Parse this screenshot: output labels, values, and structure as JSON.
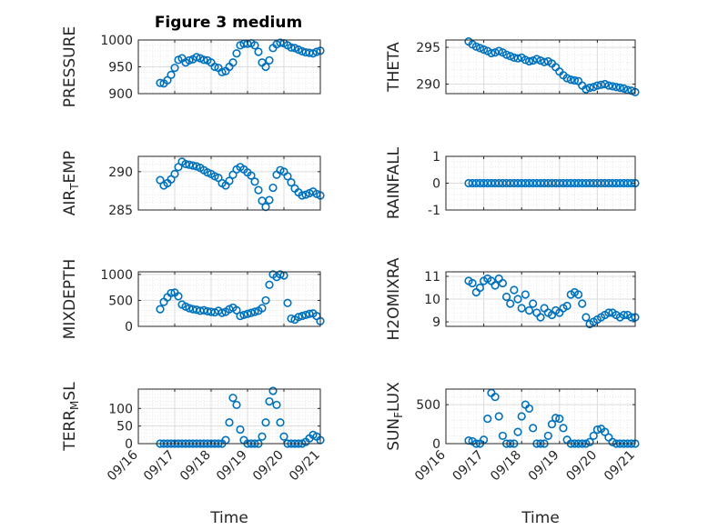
{
  "figure": {
    "title": "Figure 3 medium",
    "marker_color": "#0072BD"
  },
  "chart_data": [
    {
      "type": "scatter",
      "id": "pressure",
      "ylabel": "PRESSURE",
      "ylabel_parts": [
        [
          "PRESSURE",
          ""
        ]
      ],
      "ylim": [
        900,
        1000
      ],
      "yticks": [
        900,
        950,
        1000
      ],
      "ytick_labels": [
        "900",
        "950",
        "1000"
      ],
      "xlim": [
        0,
        5
      ],
      "xticks": [
        0,
        1,
        2,
        3,
        4,
        5
      ],
      "series": [
        {
          "name": "PRESSURE",
          "x": [
            0.6,
            0.7,
            0.8,
            0.9,
            1.0,
            1.1,
            1.2,
            1.3,
            1.4,
            1.5,
            1.6,
            1.7,
            1.8,
            1.9,
            2.0,
            2.1,
            2.2,
            2.3,
            2.4,
            2.5,
            2.6,
            2.7,
            2.8,
            2.9,
            3.0,
            3.1,
            3.2,
            3.3,
            3.4,
            3.5,
            3.6,
            3.7,
            3.8,
            3.9,
            4.0,
            4.1,
            4.2,
            4.3,
            4.4,
            4.5,
            4.6,
            4.7,
            4.8,
            4.9,
            5.0
          ],
          "y": [
            920,
            919,
            925,
            935,
            948,
            963,
            966,
            958,
            962,
            964,
            968,
            966,
            963,
            962,
            958,
            950,
            948,
            940,
            942,
            950,
            958,
            975,
            990,
            993,
            993,
            994,
            990,
            978,
            958,
            950,
            962,
            985,
            992,
            995,
            994,
            990,
            986,
            985,
            982,
            979,
            977,
            976,
            975,
            978,
            980
          ]
        }
      ]
    },
    {
      "type": "scatter",
      "id": "theta",
      "ylabel": "THETA",
      "ylabel_parts": [
        [
          "THETA",
          ""
        ]
      ],
      "ylim": [
        288.7,
        296
      ],
      "yticks": [
        290,
        295
      ],
      "ytick_labels": [
        "290",
        "295"
      ],
      "xlim": [
        0,
        5
      ],
      "xticks": [
        0,
        1,
        2,
        3,
        4,
        5
      ],
      "series": [
        {
          "name": "THETA",
          "x": [
            0.6,
            0.7,
            0.8,
            0.9,
            1.0,
            1.1,
            1.2,
            1.3,
            1.4,
            1.5,
            1.6,
            1.7,
            1.8,
            1.9,
            2.0,
            2.1,
            2.2,
            2.3,
            2.4,
            2.5,
            2.6,
            2.7,
            2.8,
            2.9,
            3.0,
            3.1,
            3.2,
            3.3,
            3.4,
            3.5,
            3.6,
            3.7,
            3.8,
            3.9,
            4.0,
            4.1,
            4.2,
            4.3,
            4.4,
            4.5,
            4.6,
            4.7,
            4.8,
            4.9,
            5.0
          ],
          "y": [
            295.8,
            295.4,
            295.1,
            294.9,
            294.7,
            294.5,
            294.2,
            294.3,
            294.5,
            294.3,
            294.0,
            293.8,
            293.6,
            293.5,
            293.6,
            293.3,
            293.1,
            293.2,
            293.4,
            293.2,
            293.0,
            293.1,
            292.8,
            292.3,
            291.7,
            291.2,
            290.8,
            290.6,
            290.5,
            290.4,
            289.8,
            289.3,
            289.5,
            289.6,
            289.8,
            289.9,
            290.0,
            289.8,
            289.7,
            289.6,
            289.5,
            289.4,
            289.2,
            289.1,
            288.9
          ]
        }
      ]
    },
    {
      "type": "scatter",
      "id": "airtemp",
      "ylabel": "AIRTEMP",
      "ylabel_parts": [
        [
          "AIR",
          ""
        ],
        [
          "T",
          "sub"
        ],
        [
          "EMP",
          ""
        ]
      ],
      "ylim": [
        285,
        292
      ],
      "yticks": [
        285,
        290
      ],
      "ytick_labels": [
        "285",
        "290"
      ],
      "xlim": [
        0,
        5
      ],
      "xticks": [
        0,
        1,
        2,
        3,
        4,
        5
      ],
      "series": [
        {
          "name": "AIRTEMP",
          "x": [
            0.6,
            0.7,
            0.8,
            0.9,
            1.0,
            1.1,
            1.2,
            1.3,
            1.4,
            1.5,
            1.6,
            1.7,
            1.8,
            1.9,
            2.0,
            2.1,
            2.2,
            2.3,
            2.4,
            2.5,
            2.6,
            2.7,
            2.8,
            2.9,
            3.0,
            3.1,
            3.2,
            3.3,
            3.4,
            3.5,
            3.6,
            3.7,
            3.8,
            3.9,
            4.0,
            4.1,
            4.2,
            4.3,
            4.4,
            4.5,
            4.6,
            4.7,
            4.8,
            4.9,
            5.0
          ],
          "y": [
            288.9,
            288.2,
            288.5,
            289.0,
            289.7,
            290.6,
            291.3,
            291.0,
            290.9,
            290.8,
            290.7,
            290.5,
            290.2,
            289.9,
            289.7,
            289.4,
            289.2,
            288.5,
            288.2,
            288.8,
            289.6,
            290.3,
            290.6,
            290.3,
            289.9,
            289.5,
            288.7,
            287.6,
            286.2,
            285.4,
            286.3,
            287.9,
            289.6,
            290.2,
            290.0,
            289.4,
            288.6,
            287.8,
            287.3,
            286.9,
            287.0,
            287.2,
            287.4,
            287.1,
            286.9
          ]
        }
      ]
    },
    {
      "type": "scatter",
      "id": "rainfall",
      "ylabel": "RAINFALL",
      "ylabel_parts": [
        [
          "RAINFALL",
          ""
        ]
      ],
      "ylim": [
        -1,
        1
      ],
      "yticks": [
        -1,
        0,
        1
      ],
      "ytick_labels": [
        "-1",
        "0",
        "1"
      ],
      "xlim": [
        0,
        5
      ],
      "xticks": [
        0,
        1,
        2,
        3,
        4,
        5
      ],
      "series": [
        {
          "name": "RAINFALL",
          "x": [
            0.6,
            0.7,
            0.8,
            0.9,
            1.0,
            1.1,
            1.2,
            1.3,
            1.4,
            1.5,
            1.6,
            1.7,
            1.8,
            1.9,
            2.0,
            2.1,
            2.2,
            2.3,
            2.4,
            2.5,
            2.6,
            2.7,
            2.8,
            2.9,
            3.0,
            3.1,
            3.2,
            3.3,
            3.4,
            3.5,
            3.6,
            3.7,
            3.8,
            3.9,
            4.0,
            4.1,
            4.2,
            4.3,
            4.4,
            4.5,
            4.6,
            4.7,
            4.8,
            4.9,
            5.0
          ],
          "y": [
            0,
            0,
            0,
            0,
            0,
            0,
            0,
            0,
            0,
            0,
            0,
            0,
            0,
            0,
            0,
            0,
            0,
            0,
            0,
            0,
            0,
            0,
            0,
            0,
            0,
            0,
            0,
            0,
            0,
            0,
            0,
            0,
            0,
            0,
            0,
            0,
            0,
            0,
            0,
            0,
            0,
            0,
            0,
            0,
            0
          ]
        }
      ]
    },
    {
      "type": "scatter",
      "id": "mixdepth",
      "ylabel": "MIXDEPTH",
      "ylabel_parts": [
        [
          "MIXDEPTH",
          ""
        ]
      ],
      "ylim": [
        0,
        1050
      ],
      "yticks": [
        0,
        500,
        1000
      ],
      "ytick_labels": [
        "0",
        "500",
        "1000"
      ],
      "xlim": [
        0,
        5
      ],
      "xticks": [
        0,
        1,
        2,
        3,
        4,
        5
      ],
      "series": [
        {
          "name": "MIXDEPTH",
          "x": [
            0.6,
            0.7,
            0.8,
            0.9,
            1.0,
            1.1,
            1.2,
            1.3,
            1.4,
            1.5,
            1.6,
            1.7,
            1.8,
            1.9,
            2.0,
            2.1,
            2.2,
            2.3,
            2.4,
            2.5,
            2.6,
            2.7,
            2.8,
            2.9,
            3.0,
            3.1,
            3.2,
            3.3,
            3.4,
            3.5,
            3.6,
            3.7,
            3.8,
            3.9,
            4.0,
            4.1,
            4.2,
            4.3,
            4.4,
            4.5,
            4.6,
            4.7,
            4.8,
            4.9,
            5.0
          ],
          "y": [
            330,
            470,
            560,
            640,
            650,
            580,
            420,
            380,
            350,
            330,
            320,
            300,
            310,
            290,
            280,
            270,
            300,
            260,
            280,
            330,
            360,
            310,
            200,
            220,
            240,
            260,
            280,
            300,
            350,
            500,
            800,
            1000,
            950,
            1000,
            980,
            450,
            150,
            130,
            180,
            200,
            220,
            240,
            250,
            200,
            100
          ]
        }
      ]
    },
    {
      "type": "scatter",
      "id": "h2omixra",
      "ylabel": "H2OMIXRA",
      "ylabel_parts": [
        [
          "H2OMIXRA",
          ""
        ]
      ],
      "ylim": [
        8.8,
        11.2
      ],
      "yticks": [
        9,
        10,
        11
      ],
      "ytick_labels": [
        "9",
        "10",
        "11"
      ],
      "xlim": [
        0,
        5
      ],
      "xticks": [
        0,
        1,
        2,
        3,
        4,
        5
      ],
      "series": [
        {
          "name": "H2OMIXRA",
          "x": [
            0.6,
            0.7,
            0.8,
            0.9,
            1.0,
            1.1,
            1.2,
            1.3,
            1.4,
            1.5,
            1.6,
            1.7,
            1.8,
            1.9,
            2.0,
            2.1,
            2.2,
            2.3,
            2.4,
            2.5,
            2.6,
            2.7,
            2.8,
            2.9,
            3.0,
            3.1,
            3.2,
            3.3,
            3.4,
            3.5,
            3.6,
            3.7,
            3.8,
            3.9,
            4.0,
            4.1,
            4.2,
            4.3,
            4.4,
            4.5,
            4.6,
            4.7,
            4.8,
            4.9,
            5.0
          ],
          "y": [
            10.8,
            10.7,
            10.3,
            10.5,
            10.8,
            10.9,
            10.8,
            10.6,
            10.9,
            10.7,
            10.1,
            9.8,
            10.4,
            10.0,
            9.6,
            10.2,
            9.5,
            9.8,
            9.4,
            9.2,
            9.6,
            9.4,
            9.3,
            9.5,
            9.4,
            9.6,
            9.7,
            10.2,
            10.3,
            10.2,
            9.8,
            9.2,
            8.9,
            9.0,
            9.1,
            9.2,
            9.3,
            9.4,
            9.4,
            9.3,
            9.2,
            9.3,
            9.3,
            9.2,
            9.2
          ]
        }
      ]
    },
    {
      "type": "scatter",
      "id": "terrmsl",
      "ylabel": "TERRMSL",
      "ylabel_parts": [
        [
          "TERR",
          ""
        ],
        [
          "M",
          "sub"
        ],
        [
          "SL",
          ""
        ]
      ],
      "ylim": [
        0,
        155
      ],
      "yticks": [
        0,
        50,
        100
      ],
      "ytick_labels": [
        "0",
        "50",
        "100"
      ],
      "xlim": [
        0,
        5
      ],
      "xticks": [
        0,
        1,
        2,
        3,
        4,
        5
      ],
      "xtick_labels": [
        "09/16",
        "09/17",
        "09/18",
        "09/19",
        "09/20",
        "09/21"
      ],
      "xlabel": "Time",
      "series": [
        {
          "name": "TERRMSL",
          "x": [
            0.6,
            0.7,
            0.8,
            0.9,
            1.0,
            1.1,
            1.2,
            1.3,
            1.4,
            1.5,
            1.6,
            1.7,
            1.8,
            1.9,
            2.0,
            2.1,
            2.2,
            2.3,
            2.4,
            2.5,
            2.6,
            2.7,
            2.8,
            2.9,
            3.0,
            3.1,
            3.2,
            3.3,
            3.4,
            3.5,
            3.6,
            3.7,
            3.8,
            3.9,
            4.0,
            4.1,
            4.2,
            4.3,
            4.4,
            4.5,
            4.6,
            4.7,
            4.8,
            4.9,
            5.0
          ],
          "y": [
            0,
            0,
            0,
            0,
            0,
            0,
            0,
            0,
            0,
            0,
            0,
            0,
            0,
            0,
            0,
            0,
            0,
            0,
            10,
            60,
            130,
            110,
            40,
            10,
            0,
            0,
            0,
            0,
            20,
            60,
            120,
            150,
            110,
            60,
            20,
            0,
            0,
            0,
            0,
            0,
            5,
            15,
            25,
            20,
            10
          ]
        }
      ]
    },
    {
      "type": "scatter",
      "id": "sunflux",
      "ylabel": "SUNFLUX",
      "ylabel_parts": [
        [
          "SUN",
          ""
        ],
        [
          "F",
          "sub"
        ],
        [
          "LUX",
          ""
        ]
      ],
      "ylim": [
        0,
        700
      ],
      "yticks": [
        0,
        500
      ],
      "ytick_labels": [
        "0",
        "500"
      ],
      "xlim": [
        0,
        5
      ],
      "xticks": [
        0,
        1,
        2,
        3,
        4,
        5
      ],
      "xtick_labels": [
        "09/16",
        "09/17",
        "09/18",
        "09/19",
        "09/20",
        "09/21"
      ],
      "xlabel": "Time",
      "series": [
        {
          "name": "SUNFLUX",
          "x": [
            0.6,
            0.7,
            0.8,
            0.9,
            1.0,
            1.1,
            1.2,
            1.3,
            1.4,
            1.5,
            1.6,
            1.7,
            1.8,
            1.9,
            2.0,
            2.1,
            2.2,
            2.3,
            2.4,
            2.5,
            2.6,
            2.7,
            2.8,
            2.9,
            3.0,
            3.1,
            3.2,
            3.3,
            3.4,
            3.5,
            3.6,
            3.7,
            3.8,
            3.9,
            4.0,
            4.1,
            4.2,
            4.3,
            4.4,
            4.5,
            4.6,
            4.7,
            4.8,
            4.9,
            5.0
          ],
          "y": [
            40,
            30,
            0,
            0,
            50,
            320,
            650,
            600,
            350,
            100,
            0,
            0,
            0,
            150,
            350,
            500,
            450,
            200,
            0,
            0,
            0,
            100,
            250,
            330,
            320,
            200,
            50,
            0,
            0,
            0,
            0,
            0,
            20,
            100,
            180,
            190,
            150,
            80,
            20,
            0,
            0,
            0,
            0,
            0,
            0
          ]
        }
      ]
    }
  ]
}
